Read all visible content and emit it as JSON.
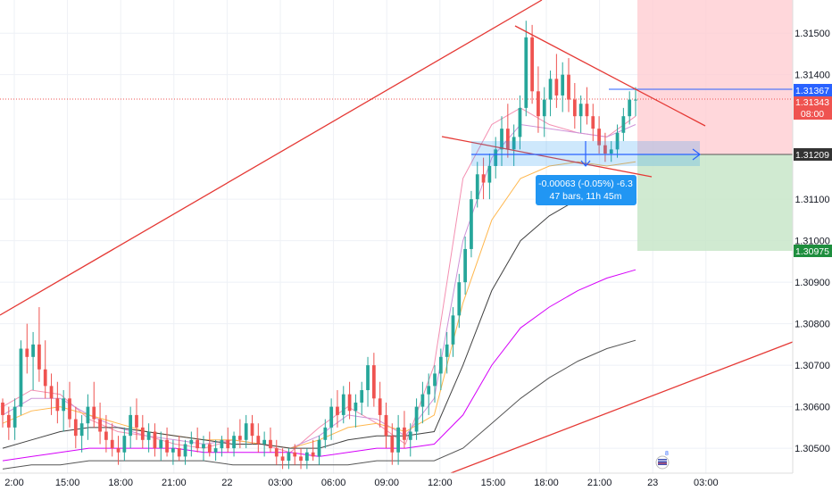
{
  "chart_data": {
    "type": "candlestick",
    "x_tick_labels": [
      "2:00",
      "15:00",
      "18:00",
      "21:00",
      "22",
      "03:00",
      "06:00",
      "09:00",
      "12:00",
      "15:00",
      "18:00",
      "21:00",
      "23",
      "03:00"
    ],
    "y_tick_labels": [
      "1.31500",
      "1.31400",
      "1.31100",
      "1.31000",
      "1.30900",
      "1.30800",
      "1.30700",
      "1.30600",
      "1.30500"
    ],
    "y_range": [
      1.3044,
      1.3158
    ],
    "grid": true,
    "colors": {
      "up": "#26a69a",
      "down": "#ef5350",
      "trendline": "#e53935",
      "position_target_zone": "#b9e6b6",
      "position_stop_zone": "#ffb3b3",
      "entry_label": "#333333",
      "target_label": "#1e8e3e",
      "current_price_label": "#ef5350",
      "highlight_label": "#2962ff",
      "measure_box": "#2196f3",
      "ma_colors": [
        "#f48fb1",
        "#ce93d8",
        "#ffb74d",
        "#424242",
        "#d500f9",
        "#555555"
      ]
    },
    "price_labels": {
      "highlight": "1.31367",
      "current": "1.31343",
      "countdown": "08:00",
      "entry": "1.31209",
      "target": "1.30975"
    },
    "measure": {
      "line1": "-0.00063 (-0.05%) -6.3",
      "line2": "47 bars, 11h 45m"
    },
    "candles": [
      [
        1.3061,
        1.3062,
        1.3055,
        1.3058
      ],
      [
        1.3058,
        1.306,
        1.3052,
        1.3055
      ],
      [
        1.3055,
        1.3062,
        1.3052,
        1.306
      ],
      [
        1.306,
        1.3076,
        1.3058,
        1.3074
      ],
      [
        1.3074,
        1.308,
        1.3068,
        1.3072
      ],
      [
        1.3072,
        1.3078,
        1.3064,
        1.3075
      ],
      [
        1.3075,
        1.3084,
        1.3066,
        1.3069
      ],
      [
        1.3069,
        1.3076,
        1.3062,
        1.3065
      ],
      [
        1.3065,
        1.3068,
        1.3058,
        1.3062
      ],
      [
        1.3062,
        1.3066,
        1.3056,
        1.3059
      ],
      [
        1.3059,
        1.3064,
        1.3054,
        1.3062
      ],
      [
        1.3062,
        1.3066,
        1.3055,
        1.3057
      ],
      [
        1.3057,
        1.306,
        1.305,
        1.3053
      ],
      [
        1.3053,
        1.3058,
        1.3049,
        1.3056
      ],
      [
        1.3056,
        1.3063,
        1.3052,
        1.306
      ],
      [
        1.306,
        1.3066,
        1.3055,
        1.3057
      ],
      [
        1.3057,
        1.3061,
        1.3051,
        1.3054
      ],
      [
        1.3054,
        1.3058,
        1.3049,
        1.3052
      ],
      [
        1.3052,
        1.3056,
        1.3048,
        1.305
      ],
      [
        1.305,
        1.3053,
        1.3046,
        1.3049
      ],
      [
        1.3049,
        1.3055,
        1.3047,
        1.3053
      ],
      [
        1.3053,
        1.306,
        1.305,
        1.3058
      ],
      [
        1.3058,
        1.3062,
        1.3052,
        1.3055
      ],
      [
        1.3055,
        1.3058,
        1.305,
        1.3052
      ],
      [
        1.3052,
        1.3056,
        1.3049,
        1.3054
      ],
      [
        1.3054,
        1.3056,
        1.3048,
        1.305
      ],
      [
        1.305,
        1.3054,
        1.3047,
        1.3052
      ],
      [
        1.3052,
        1.3055,
        1.3048,
        1.3049
      ],
      [
        1.3049,
        1.3052,
        1.3046,
        1.305
      ],
      [
        1.305,
        1.3053,
        1.3047,
        1.3048
      ],
      [
        1.3048,
        1.3052,
        1.3046,
        1.3051
      ],
      [
        1.3051,
        1.3054,
        1.3048,
        1.3052
      ],
      [
        1.3052,
        1.3055,
        1.3049,
        1.305
      ],
      [
        1.305,
        1.3053,
        1.3047,
        1.3051
      ],
      [
        1.3051,
        1.3054,
        1.3048,
        1.3049
      ],
      [
        1.3049,
        1.3052,
        1.3047,
        1.305
      ],
      [
        1.305,
        1.3053,
        1.3048,
        1.3052
      ],
      [
        1.3052,
        1.3055,
        1.3049,
        1.305
      ],
      [
        1.305,
        1.3054,
        1.3048,
        1.3053
      ],
      [
        1.3053,
        1.3057,
        1.305,
        1.3052
      ],
      [
        1.3052,
        1.3058,
        1.305,
        1.3056
      ],
      [
        1.3056,
        1.3058,
        1.3051,
        1.3053
      ],
      [
        1.3053,
        1.3056,
        1.3049,
        1.3051
      ],
      [
        1.3051,
        1.3054,
        1.3048,
        1.3052
      ],
      [
        1.3052,
        1.3055,
        1.3049,
        1.305
      ],
      [
        1.305,
        1.3052,
        1.3046,
        1.3048
      ],
      [
        1.3048,
        1.305,
        1.3045,
        1.3047
      ],
      [
        1.3047,
        1.305,
        1.3045,
        1.3049
      ],
      [
        1.3049,
        1.3051,
        1.3046,
        1.3048
      ],
      [
        1.3048,
        1.305,
        1.3045,
        1.3047
      ],
      [
        1.3047,
        1.305,
        1.3045,
        1.3049
      ],
      [
        1.3049,
        1.3052,
        1.3047,
        1.3048
      ],
      [
        1.3048,
        1.3053,
        1.3046,
        1.3052
      ],
      [
        1.3052,
        1.3057,
        1.305,
        1.3055
      ],
      [
        1.3055,
        1.3062,
        1.3052,
        1.306
      ],
      [
        1.306,
        1.3064,
        1.3055,
        1.3058
      ],
      [
        1.3058,
        1.3065,
        1.3056,
        1.3063
      ],
      [
        1.3063,
        1.3066,
        1.3057,
        1.3059
      ],
      [
        1.3059,
        1.3063,
        1.3055,
        1.3061
      ],
      [
        1.3061,
        1.3066,
        1.3058,
        1.3064
      ],
      [
        1.3064,
        1.3072,
        1.306,
        1.307
      ],
      [
        1.307,
        1.3073,
        1.306,
        1.3062
      ],
      [
        1.3062,
        1.3066,
        1.3055,
        1.3058
      ],
      [
        1.3058,
        1.3061,
        1.305,
        1.3053
      ],
      [
        1.3053,
        1.3056,
        1.3046,
        1.3049
      ],
      [
        1.3049,
        1.3058,
        1.3046,
        1.3055
      ],
      [
        1.3055,
        1.3059,
        1.305,
        1.3052
      ],
      [
        1.3052,
        1.3056,
        1.3048,
        1.3054
      ],
      [
        1.3054,
        1.3062,
        1.3052,
        1.306
      ],
      [
        1.306,
        1.3066,
        1.3056,
        1.3063
      ],
      [
        1.3063,
        1.3068,
        1.3058,
        1.3065
      ],
      [
        1.3065,
        1.307,
        1.3061,
        1.3068
      ],
      [
        1.3068,
        1.3074,
        1.3064,
        1.3072
      ],
      [
        1.3072,
        1.3078,
        1.3068,
        1.3075
      ],
      [
        1.3075,
        1.3084,
        1.3072,
        1.3082
      ],
      [
        1.3082,
        1.3092,
        1.3079,
        1.309
      ],
      [
        1.309,
        1.3101,
        1.3087,
        1.3098
      ],
      [
        1.3098,
        1.3112,
        1.3096,
        1.311
      ],
      [
        1.311,
        1.3119,
        1.3108,
        1.3116
      ],
      [
        1.3116,
        1.312,
        1.311,
        1.3114
      ],
      [
        1.3114,
        1.3121,
        1.311,
        1.3118
      ],
      [
        1.3118,
        1.3125,
        1.3115,
        1.3122
      ],
      [
        1.3122,
        1.313,
        1.3118,
        1.3127
      ],
      [
        1.3127,
        1.3133,
        1.312,
        1.3122
      ],
      [
        1.3122,
        1.3128,
        1.3118,
        1.3125
      ],
      [
        1.3125,
        1.3135,
        1.3122,
        1.3132
      ],
      [
        1.3132,
        1.3153,
        1.313,
        1.3149
      ],
      [
        1.3149,
        1.3152,
        1.3133,
        1.3136
      ],
      [
        1.3136,
        1.3142,
        1.3126,
        1.313
      ],
      [
        1.313,
        1.3137,
        1.3125,
        1.3134
      ],
      [
        1.3134,
        1.3141,
        1.313,
        1.3139
      ],
      [
        1.3139,
        1.3145,
        1.3132,
        1.3135
      ],
      [
        1.3135,
        1.3143,
        1.3131,
        1.314
      ],
      [
        1.314,
        1.3144,
        1.3131,
        1.3134
      ],
      [
        1.3134,
        1.3138,
        1.3127,
        1.313
      ],
      [
        1.313,
        1.3135,
        1.3126,
        1.3133
      ],
      [
        1.3133,
        1.3137,
        1.3128,
        1.313
      ],
      [
        1.313,
        1.3133,
        1.3124,
        1.3127
      ],
      [
        1.3127,
        1.313,
        1.3121,
        1.3123
      ],
      [
        1.3123,
        1.3126,
        1.3119,
        1.3121
      ],
      [
        1.3121,
        1.3124,
        1.3119,
        1.3122
      ],
      [
        1.3122,
        1.3128,
        1.312,
        1.3126
      ],
      [
        1.3126,
        1.3132,
        1.3124,
        1.313
      ],
      [
        1.313,
        1.3136,
        1.3128,
        1.3134
      ],
      [
        1.3134,
        1.3137,
        1.313,
        1.3134
      ]
    ],
    "moving_averages": [
      [
        1.306,
        1.3064,
        1.3063,
        1.3057,
        1.3054,
        1.3053,
        1.3051,
        1.305,
        1.3052,
        1.3051,
        1.3049,
        1.3055,
        1.306,
        1.3056,
        1.3051,
        1.307,
        1.3115,
        1.3128,
        1.3132,
        1.3128,
        1.3126,
        1.3125,
        1.313
      ],
      [
        1.3058,
        1.3062,
        1.3062,
        1.3058,
        1.3055,
        1.3053,
        1.3052,
        1.3051,
        1.3052,
        1.3051,
        1.305,
        1.3053,
        1.3058,
        1.3057,
        1.3053,
        1.3062,
        1.31,
        1.312,
        1.3128,
        1.3127,
        1.3126,
        1.3125,
        1.3128
      ],
      [
        1.3056,
        1.3059,
        1.306,
        1.3058,
        1.3056,
        1.3054,
        1.3053,
        1.3052,
        1.3052,
        1.3051,
        1.305,
        1.3052,
        1.3055,
        1.3056,
        1.3054,
        1.3058,
        1.3085,
        1.3105,
        1.3115,
        1.3118,
        1.3119,
        1.3118,
        1.3119
      ],
      [
        1.305,
        1.3052,
        1.3054,
        1.3055,
        1.3055,
        1.3054,
        1.3053,
        1.3052,
        1.3051,
        1.3051,
        1.305,
        1.305,
        1.3052,
        1.3053,
        1.3053,
        1.3054,
        1.307,
        1.3088,
        1.31,
        1.3106,
        1.311,
        1.3111,
        1.3112
      ],
      [
        1.3047,
        1.3048,
        1.3049,
        1.305,
        1.305,
        1.305,
        1.305,
        1.3049,
        1.3049,
        1.3049,
        1.3049,
        1.3048,
        1.3049,
        1.305,
        1.305,
        1.3051,
        1.3058,
        1.307,
        1.3079,
        1.3084,
        1.3088,
        1.3091,
        1.3093
      ],
      [
        1.3045,
        1.3046,
        1.3046,
        1.3047,
        1.3047,
        1.3047,
        1.3047,
        1.3047,
        1.3046,
        1.3046,
        1.3046,
        1.3046,
        1.3046,
        1.3047,
        1.3047,
        1.3047,
        1.305,
        1.3056,
        1.3062,
        1.3067,
        1.3071,
        1.3074,
        1.3076
      ]
    ]
  }
}
